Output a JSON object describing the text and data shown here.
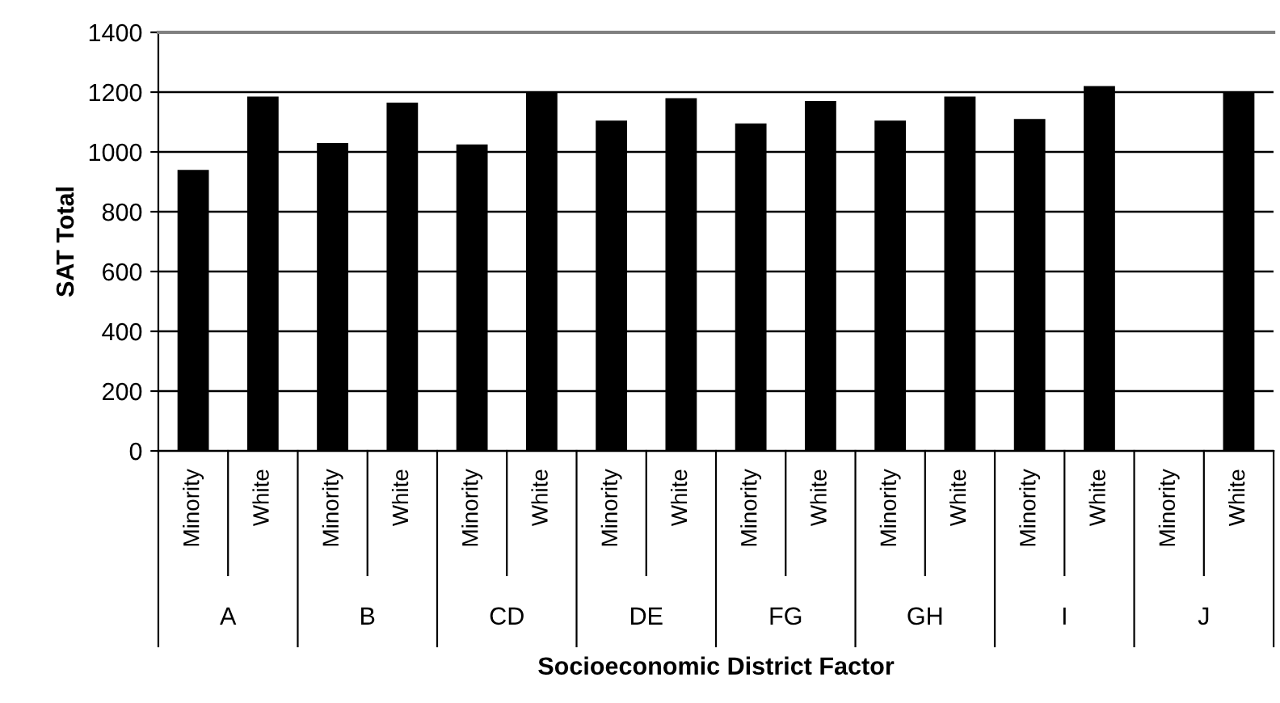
{
  "chart_data": {
    "type": "bar",
    "xlabel": "Socioeconomic District Factor",
    "ylabel": "SAT Total",
    "categories": [
      "Minority",
      "White",
      "Minority",
      "White",
      "Minority",
      "White",
      "Minority",
      "White",
      "Minority",
      "White",
      "Minority",
      "White",
      "Minority",
      "White",
      "Minority",
      "White"
    ],
    "annotations": [
      "A",
      "B",
      "CD",
      "DE",
      "FG",
      "GH",
      "I",
      "J"
    ],
    "values": [
      940,
      1185,
      1030,
      1165,
      1025,
      1200,
      1105,
      1180,
      1095,
      1170,
      1105,
      1185,
      1110,
      1220,
      null,
      1200
    ],
    "color": "#000000",
    "ylim": [
      0,
      1400
    ],
    "yticks": [
      0,
      200,
      400,
      600,
      800,
      1000,
      1200,
      1400
    ],
    "grid": "y",
    "legend": false
  }
}
